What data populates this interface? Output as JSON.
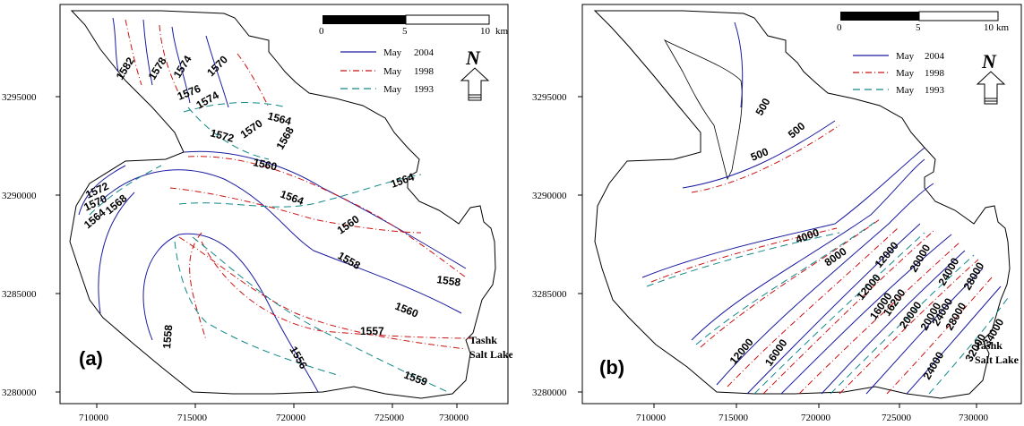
{
  "legend": {
    "items": [
      {
        "month": "May",
        "year": "2004",
        "color": "#1a1aa0",
        "dash": "solid"
      },
      {
        "month": "May",
        "year": "1998",
        "color": "#cc1111",
        "dash": "dashdot"
      },
      {
        "month": "May",
        "year": "1993",
        "color": "#118888",
        "dash": "dash"
      }
    ],
    "north_label": "N"
  },
  "scale_bar": {
    "tick_0": "0",
    "tick_5": "5",
    "tick_10": "10",
    "unit_a": "km",
    "unit_b": "km"
  },
  "axes": {
    "x_ticks": [
      "710000",
      "715000",
      "720000",
      "725000",
      "730000"
    ],
    "y_ticks": [
      "3295000",
      "3290000",
      "3285000",
      "3280000"
    ]
  },
  "panel_a": {
    "label": "(a)",
    "lake_line1": "Tashk",
    "lake_line2": "Salt Lake",
    "contour_labels": [
      "1582",
      "1578",
      "1574",
      "1570",
      "1576",
      "1574",
      "1564",
      "1572",
      "1570",
      "1568",
      "1560",
      "1564",
      "1564",
      "1572",
      "1570",
      "1564",
      "1568",
      "1560",
      "1558",
      "1558",
      "1558",
      "1560",
      "1557",
      "1556",
      "1559"
    ]
  },
  "panel_b": {
    "label": "(b)",
    "lake_line1": "Tashk",
    "lake_line2": "Salt Lake",
    "contour_labels": [
      "500",
      "500",
      "500",
      "4000",
      "8000",
      "12000",
      "12000",
      "16000",
      "16200",
      "20000",
      "20000",
      "24000",
      "20000",
      "24000",
      "28000",
      "28000",
      "32000",
      "34000",
      "12000",
      "16000",
      "24000"
    ]
  }
}
